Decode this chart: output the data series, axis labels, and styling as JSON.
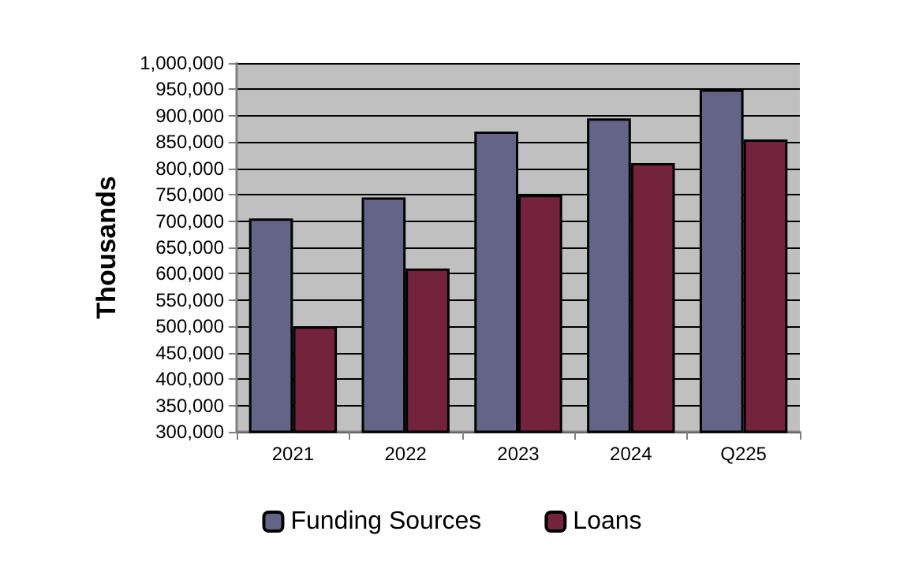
{
  "chart_data": {
    "type": "bar",
    "ylabel": "Thousands",
    "categories": [
      "2021",
      "2022",
      "2023",
      "2024",
      "Q225"
    ],
    "series": [
      {
        "name": "Funding Sources",
        "color": "#646488",
        "values": [
          705000,
          745000,
          870000,
          895000,
          950000
        ]
      },
      {
        "name": "Loans",
        "color": "#74233d",
        "values": [
          500000,
          610000,
          750000,
          810000,
          855000
        ]
      }
    ],
    "ylim": [
      300000,
      1000000
    ],
    "yticks": [
      {
        "value": 300000,
        "label": "300,000"
      },
      {
        "value": 350000,
        "label": "350,000"
      },
      {
        "value": 400000,
        "label": "400,000"
      },
      {
        "value": 450000,
        "label": "450,000"
      },
      {
        "value": 500000,
        "label": "500,000"
      },
      {
        "value": 550000,
        "label": "550,000"
      },
      {
        "value": 600000,
        "label": "600,000"
      },
      {
        "value": 650000,
        "label": "650,000"
      },
      {
        "value": 700000,
        "label": "700,000"
      },
      {
        "value": 750000,
        "label": "750,000"
      },
      {
        "value": 800000,
        "label": "800,000"
      },
      {
        "value": 850000,
        "label": "850,000"
      },
      {
        "value": 900000,
        "label": "900,000"
      },
      {
        "value": 950000,
        "label": "950,000"
      },
      {
        "value": 1000000,
        "label": "1,000,000"
      }
    ],
    "grid": "y",
    "legend": "bottom"
  }
}
